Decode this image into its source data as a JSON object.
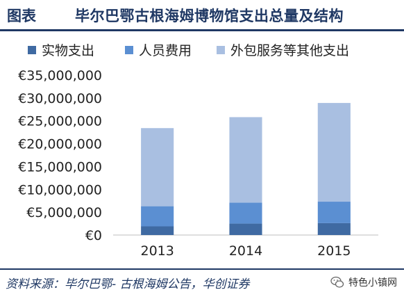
{
  "header": {
    "label": "图表",
    "title": "毕尔巴鄂古根海姆博物馆支出总量及结构"
  },
  "source": "资料来源：毕尔巴鄂- 古根海姆公告，华创证券",
  "watermark": "特色小镇网",
  "colors": {
    "physical": "#3f6aa2",
    "personnel": "#5b8fd2",
    "outsourcing": "#a9bfe1",
    "header": "#1f3864"
  },
  "chart_data": {
    "type": "bar",
    "stacked": true,
    "categories": [
      "2013",
      "2014",
      "2015"
    ],
    "series": [
      {
        "name": "实物支出",
        "values": [
          1900000,
          2500000,
          2600000
        ]
      },
      {
        "name": "人员费用",
        "values": [
          4400000,
          4600000,
          4700000
        ]
      },
      {
        "name": "外包服务等其他支出",
        "values": [
          17100000,
          18700000,
          21600000
        ]
      }
    ],
    "yticks": [
      "€0",
      "€5,000,000",
      "€10,000,000",
      "€15,000,000",
      "€20,000,000",
      "€25,000,000",
      "€30,000,000",
      "€35,000,000"
    ],
    "ylim": [
      0,
      35000000
    ],
    "grid": false,
    "legend": "top"
  }
}
